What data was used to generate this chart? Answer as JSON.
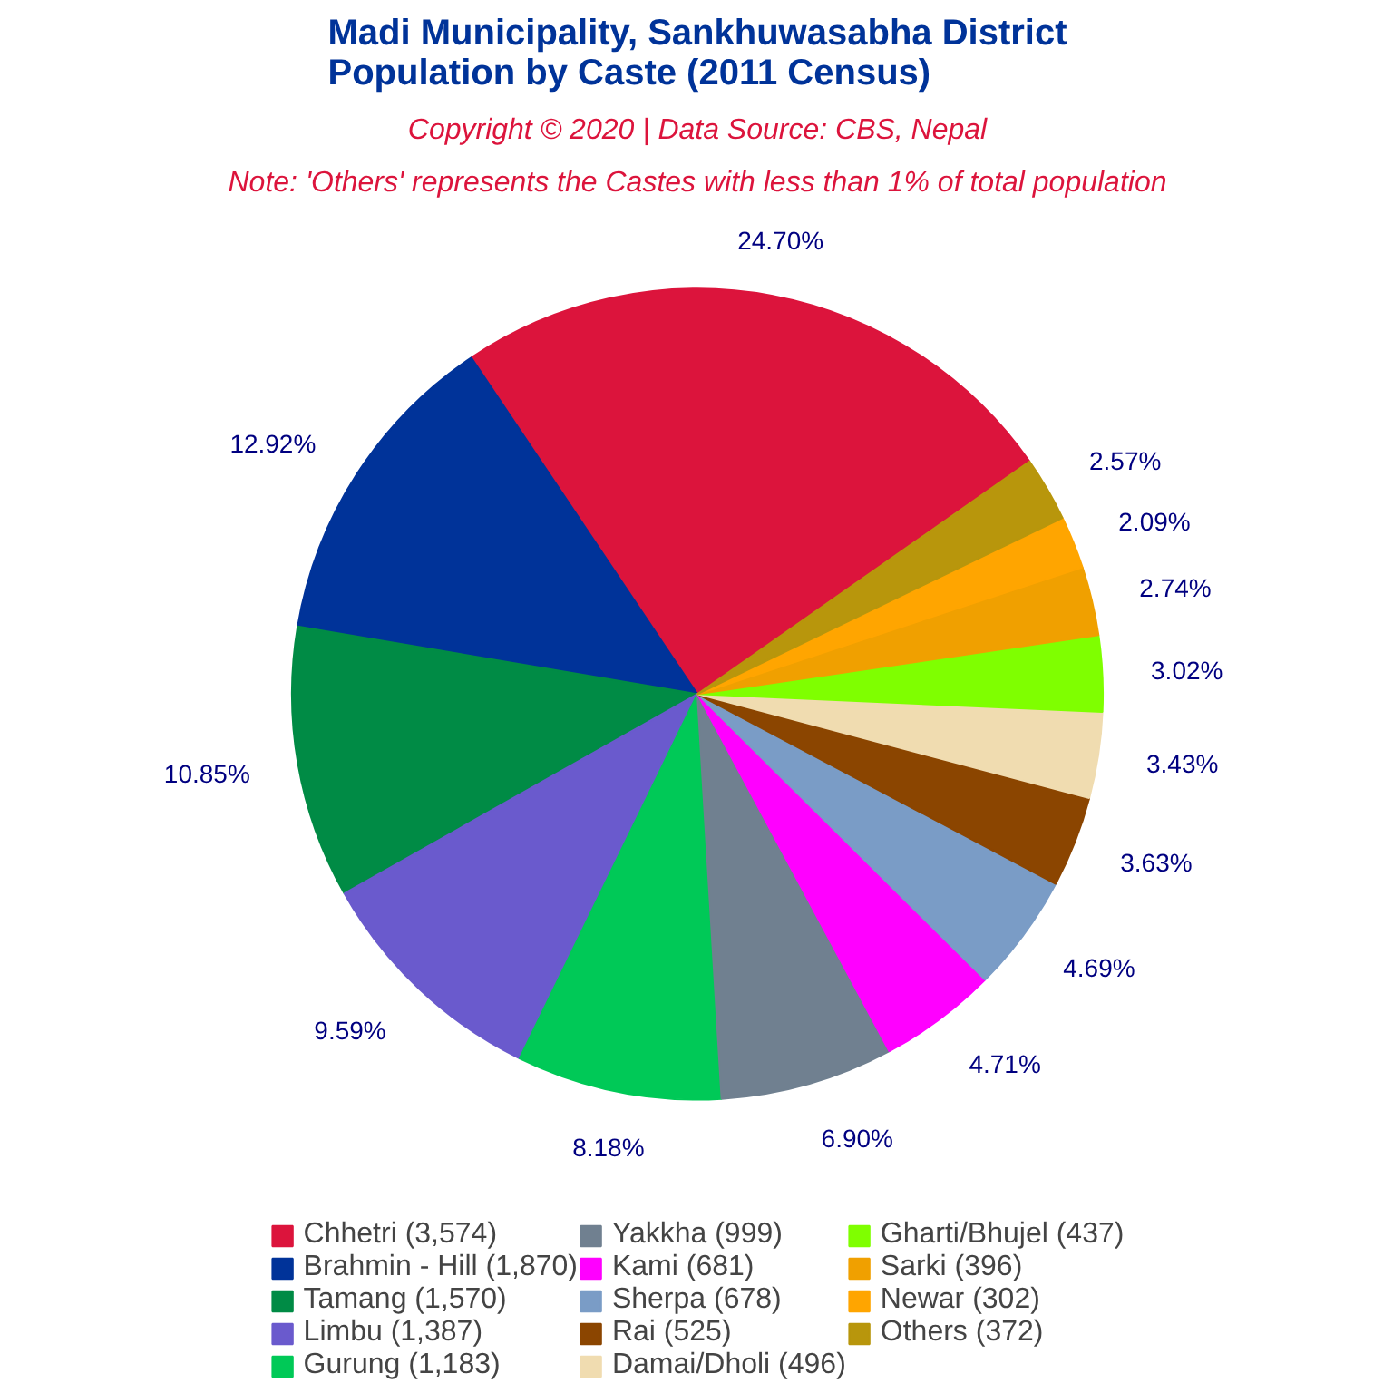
{
  "chart_data": {
    "type": "pie",
    "title": "Madi Municipality, Sankhuwasabha District\nPopulation by Caste (2011 Census)",
    "subtitle": "Copyright © 2020 | Data Source: CBS, Nepal",
    "annotations": [
      "Note: 'Others' represents the Castes with less than 1% of total population"
    ],
    "categories": [
      "Chhetri (3,574)",
      "Brahmin - Hill (1,870)",
      "Tamang (1,570)",
      "Limbu (1,387)",
      "Gurung (1,183)",
      "Yakkha (999)",
      "Kami (681)",
      "Sherpa (678)",
      "Rai (525)",
      "Damai/Dholi (496)",
      "Gharti/Bhujel (437)",
      "Sarki (396)",
      "Newar (302)",
      "Others (372)"
    ],
    "values": [
      24.7,
      12.92,
      10.85,
      9.59,
      8.18,
      6.9,
      4.71,
      4.69,
      3.63,
      3.43,
      3.02,
      2.74,
      2.09,
      2.57
    ],
    "value_labels": [
      "24.70%",
      "12.92%",
      "10.85%",
      "9.59%",
      "8.18%",
      "6.90%",
      "4.71%",
      "4.69%",
      "3.63%",
      "3.43%",
      "3.02%",
      "2.74%",
      "2.09%",
      "2.57%"
    ],
    "colors": [
      "#dc143c",
      "#003399",
      "#008b45",
      "#6a5acd",
      "#00c957",
      "#708090",
      "#ff00ff",
      "#7a9cc6",
      "#8b4500",
      "#f0dcb0",
      "#7fff00",
      "#f0a000",
      "#ffa500",
      "#b8960c"
    ],
    "legend": "bottom"
  }
}
